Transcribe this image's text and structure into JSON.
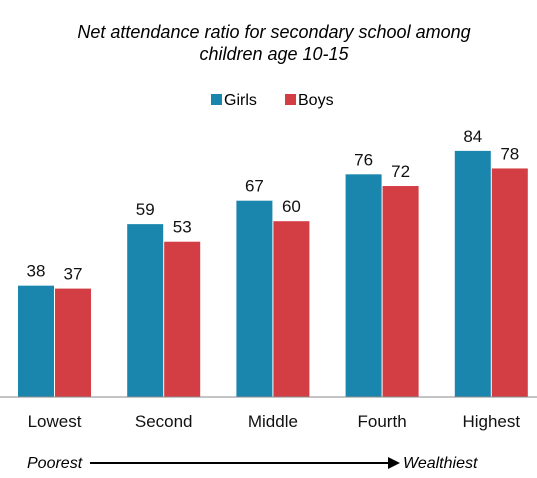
{
  "chart_data": {
    "type": "bar",
    "title_lines": [
      "Net attendance ratio for secondary school among",
      "children age 10-15"
    ],
    "categories": [
      "Lowest",
      "Second",
      "Middle",
      "Fourth",
      "Highest"
    ],
    "series": [
      {
        "name": "Girls",
        "values": [
          38,
          59,
          67,
          76,
          84
        ],
        "color": "#1a86ad"
      },
      {
        "name": "Boys",
        "values": [
          37,
          53,
          60,
          72,
          78
        ],
        "color": "#d33d44"
      }
    ],
    "ylim": [
      0,
      100
    ],
    "grid": false,
    "legend_placement": "top-center",
    "value_labels": true,
    "annotation": {
      "left": "Poorest",
      "right": "Wealthiest"
    }
  }
}
